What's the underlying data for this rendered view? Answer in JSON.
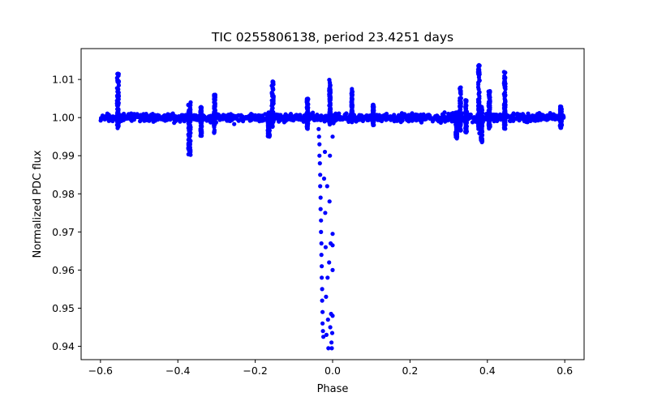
{
  "chart_data": {
    "type": "scatter",
    "title": "TIC 0255806138, period 23.4251 days",
    "xlabel": "Phase",
    "ylabel": "Normalized PDC flux",
    "xlim": [
      -0.65,
      0.65
    ],
    "ylim": [
      0.9365,
      1.0181
    ],
    "x_ticks": [
      -0.6,
      -0.4,
      -0.2,
      0.0,
      0.2,
      0.4,
      0.6
    ],
    "x_tick_labels": [
      "−0.6",
      "−0.4",
      "−0.2",
      "0.0",
      "0.2",
      "0.4",
      "0.6"
    ],
    "y_ticks": [
      0.94,
      0.95,
      0.96,
      0.97,
      0.98,
      0.99,
      1.0,
      1.01
    ],
    "y_tick_labels": [
      "0.94",
      "0.95",
      "0.96",
      "0.97",
      "0.98",
      "0.99",
      "1.00",
      "1.01"
    ],
    "grid": false,
    "marker_color": "#0000ff",
    "baseline": {
      "x_range": [
        -0.6,
        0.6
      ],
      "flux": 1.0,
      "scatter": 0.0012
    },
    "features": [
      {
        "phase": -0.555,
        "width": 0.005,
        "flux_max": 1.012,
        "flux_min": 0.997
      },
      {
        "phase": -0.37,
        "width": 0.006,
        "flux_max": 1.004,
        "flux_min": 0.99
      },
      {
        "phase": -0.34,
        "width": 0.004,
        "flux_max": 1.003,
        "flux_min": 0.995
      },
      {
        "phase": -0.305,
        "width": 0.004,
        "flux_max": 1.006,
        "flux_min": 0.996
      },
      {
        "phase": -0.165,
        "width": 0.005,
        "flux_max": 1.0005,
        "flux_min": 0.9945
      },
      {
        "phase": -0.155,
        "width": 0.005,
        "flux_max": 1.0095,
        "flux_min": 0.9975
      },
      {
        "phase": -0.065,
        "width": 0.004,
        "flux_max": 1.005,
        "flux_min": 0.997
      },
      {
        "phase": -0.007,
        "width": 0.004,
        "flux_max": 1.01,
        "flux_min": 0.999
      },
      {
        "phase": 0.05,
        "width": 0.003,
        "flux_max": 1.0075,
        "flux_min": 0.999
      },
      {
        "phase": 0.105,
        "width": 0.003,
        "flux_max": 1.0035,
        "flux_min": 0.998
      },
      {
        "phase": 0.32,
        "width": 0.004,
        "flux_max": 1.0015,
        "flux_min": 0.9945
      },
      {
        "phase": 0.33,
        "width": 0.004,
        "flux_max": 1.008,
        "flux_min": 0.996
      },
      {
        "phase": 0.345,
        "width": 0.004,
        "flux_max": 1.005,
        "flux_min": 0.996
      },
      {
        "phase": 0.378,
        "width": 0.004,
        "flux_max": 1.014,
        "flux_min": 0.997
      },
      {
        "phase": 0.385,
        "width": 0.004,
        "flux_max": 1.003,
        "flux_min": 0.9935
      },
      {
        "phase": 0.405,
        "width": 0.004,
        "flux_max": 1.007,
        "flux_min": 0.997
      },
      {
        "phase": 0.445,
        "width": 0.004,
        "flux_max": 1.012,
        "flux_min": 0.997
      },
      {
        "phase": 0.59,
        "width": 0.005,
        "flux_max": 1.003,
        "flux_min": 0.997
      }
    ],
    "eclipse": {
      "points": [
        [
          -0.037,
          0.9995
        ],
        [
          -0.036,
          0.997
        ],
        [
          -0.035,
          0.995
        ],
        [
          -0.034,
          0.993
        ],
        [
          -0.034,
          0.99
        ],
        [
          -0.033,
          0.988
        ],
        [
          -0.032,
          0.985
        ],
        [
          -0.032,
          0.982
        ],
        [
          -0.031,
          0.979
        ],
        [
          -0.031,
          0.976
        ],
        [
          -0.03,
          0.973
        ],
        [
          -0.03,
          0.97
        ],
        [
          -0.029,
          0.967
        ],
        [
          -0.029,
          0.964
        ],
        [
          -0.028,
          0.961
        ],
        [
          -0.028,
          0.958
        ],
        [
          -0.027,
          0.955
        ],
        [
          -0.027,
          0.952
        ],
        [
          -0.026,
          0.949
        ],
        [
          -0.026,
          0.946
        ],
        [
          -0.025,
          0.944
        ],
        [
          -0.024,
          0.9425
        ],
        [
          -0.022,
          0.984
        ],
        [
          -0.02,
          0.991
        ],
        [
          -0.019,
          0.975
        ],
        [
          -0.018,
          0.966
        ],
        [
          -0.017,
          0.953
        ],
        [
          -0.016,
          0.943
        ],
        [
          -0.014,
          0.982
        ],
        [
          -0.013,
          0.958
        ],
        [
          -0.012,
          0.947
        ],
        [
          -0.011,
          0.9395
        ],
        [
          -0.009,
          0.962
        ],
        [
          -0.008,
          0.978
        ],
        [
          -0.007,
          0.99
        ],
        [
          -0.006,
          0.945
        ],
        [
          -0.005,
          0.967
        ],
        [
          -0.004,
          0.9485
        ],
        [
          -0.003,
          0.941
        ],
        [
          -0.002,
          0.9395
        ],
        [
          -0.001,
          0.9435
        ],
        [
          0.0,
          0.948
        ],
        [
          0.0,
          0.96
        ],
        [
          0.0,
          0.9665
        ],
        [
          0.0,
          0.9695
        ],
        [
          0.0,
          0.995
        ],
        [
          0.002,
          0.9985
        ]
      ]
    }
  }
}
